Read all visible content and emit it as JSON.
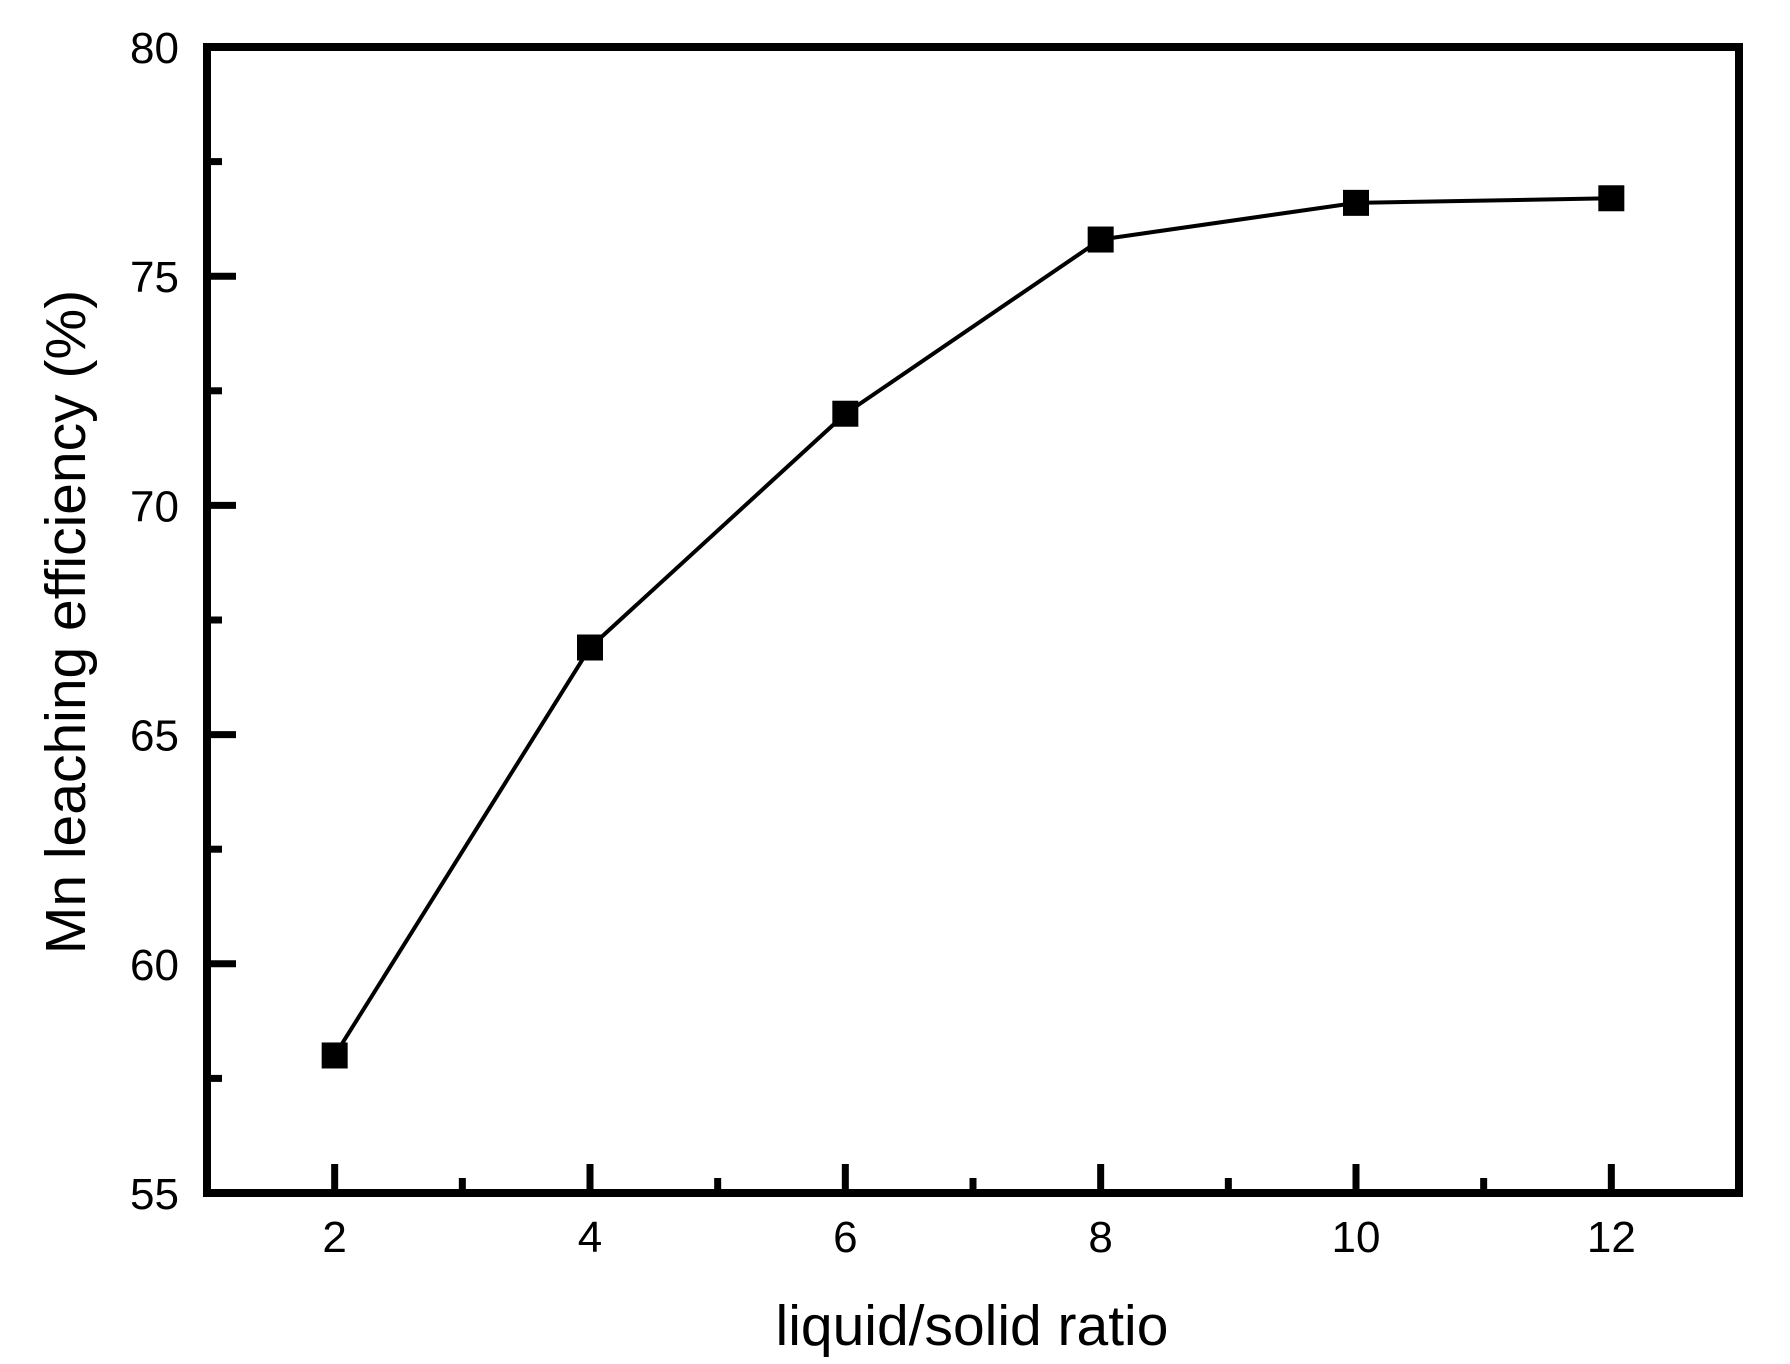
{
  "chart_data": {
    "type": "line",
    "title": "",
    "xlabel": "liquid/solid ratio",
    "ylabel": "Mn leaching efficiency (%)",
    "x": [
      2,
      4,
      6,
      8,
      10,
      12
    ],
    "series": [
      {
        "name": "Mn leaching efficiency",
        "values": [
          58.0,
          66.9,
          72.0,
          75.8,
          76.6,
          76.7
        ]
      }
    ],
    "xlim": [
      1,
      13
    ],
    "ylim": [
      55,
      80
    ],
    "x_major_ticks": [
      2,
      4,
      6,
      8,
      10,
      12
    ],
    "x_minor_ticks": [
      3,
      5,
      7,
      9,
      11
    ],
    "y_major_ticks": [
      55,
      60,
      65,
      70,
      75,
      80
    ],
    "y_minor_ticks": [
      57.5,
      62.5,
      67.5,
      72.5,
      77.5
    ],
    "grid": false,
    "legend": "none",
    "marker": "filled-square",
    "line_color": "#000000",
    "marker_color": "#000000",
    "frame_color": "#000000",
    "background": "#ffffff"
  }
}
